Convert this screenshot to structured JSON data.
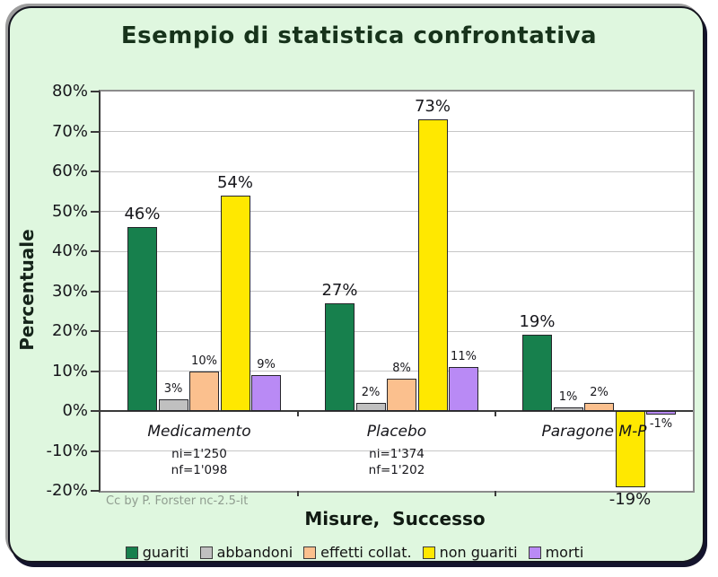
{
  "frame": {
    "background": "#dff7df",
    "border_color": "#15151f",
    "shadow_color": "#14142d"
  },
  "chart_data": {
    "type": "bar",
    "title": "Esempio di statistica confrontativa",
    "xlabel": "Misure,  Successo",
    "ylabel": "Percentuale",
    "credit": "Cc by P. Forster nc-2.5-it",
    "ylim": [
      -20,
      80
    ],
    "ytick_step": 10,
    "ytick_suffix": "%",
    "grid": true,
    "legend_position": "bottom",
    "plot_background": "#ffffff",
    "zero_line": true,
    "categories": [
      {
        "label": "Medicamento",
        "sublabels": [
          "ni=1'250",
          "nf=1'098"
        ]
      },
      {
        "label": "Placebo",
        "sublabels": [
          "ni=1'374",
          "nf=1'202"
        ]
      },
      {
        "label": "Paragone M-P",
        "sublabels": []
      }
    ],
    "series": [
      {
        "name": "guariti",
        "color": "#17804d",
        "values": [
          46,
          27,
          19
        ],
        "label_size": "large"
      },
      {
        "name": "abbandoni",
        "color": "#c0c0c0",
        "values": [
          3,
          2,
          1
        ],
        "label_size": "small"
      },
      {
        "name": "effetti collat.",
        "color": "#fbc08e",
        "values": [
          10,
          8,
          2
        ],
        "label_size": "small"
      },
      {
        "name": "non guariti",
        "color": "#ffe800",
        "values": [
          54,
          73,
          -19
        ],
        "label_size": "large"
      },
      {
        "name": "morti",
        "color": "#b98af5",
        "values": [
          9,
          11,
          -1
        ],
        "label_size": "small"
      }
    ],
    "value_label_suffix": "%"
  }
}
